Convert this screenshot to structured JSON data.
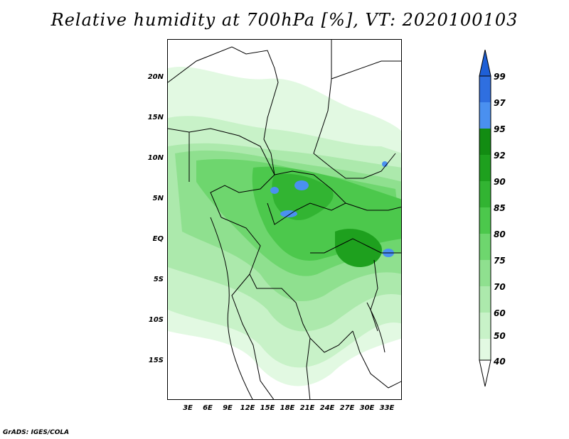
{
  "title": "Relative humidity at 700hPa [%], VT: 2020100103",
  "footer": "GrADS: IGES/COLA",
  "map": {
    "lat_labels": [
      "20N",
      "15N",
      "10N",
      "5N",
      "EQ",
      "5S",
      "10S",
      "15S"
    ],
    "lon_labels": [
      "3E",
      "6E",
      "9E",
      "12E",
      "15E",
      "18E",
      "21E",
      "24E",
      "27E",
      "30E",
      "33E"
    ]
  },
  "colorbar": {
    "labels": [
      "99",
      "97",
      "95",
      "92",
      "90",
      "85",
      "80",
      "75",
      "70",
      "60",
      "50",
      "40"
    ],
    "colors": {
      "over": "#1e5fd6",
      "99": "#2f6fe0",
      "97": "#4a90f0",
      "95": "#128c12",
      "92": "#1ea01e",
      "90": "#32b432",
      "85": "#4cc84c",
      "80": "#6ed66e",
      "75": "#8fe08f",
      "70": "#ace9ac",
      "60": "#c8f2c8",
      "50": "#e2f9e2",
      "under": "#ffffff"
    }
  }
}
